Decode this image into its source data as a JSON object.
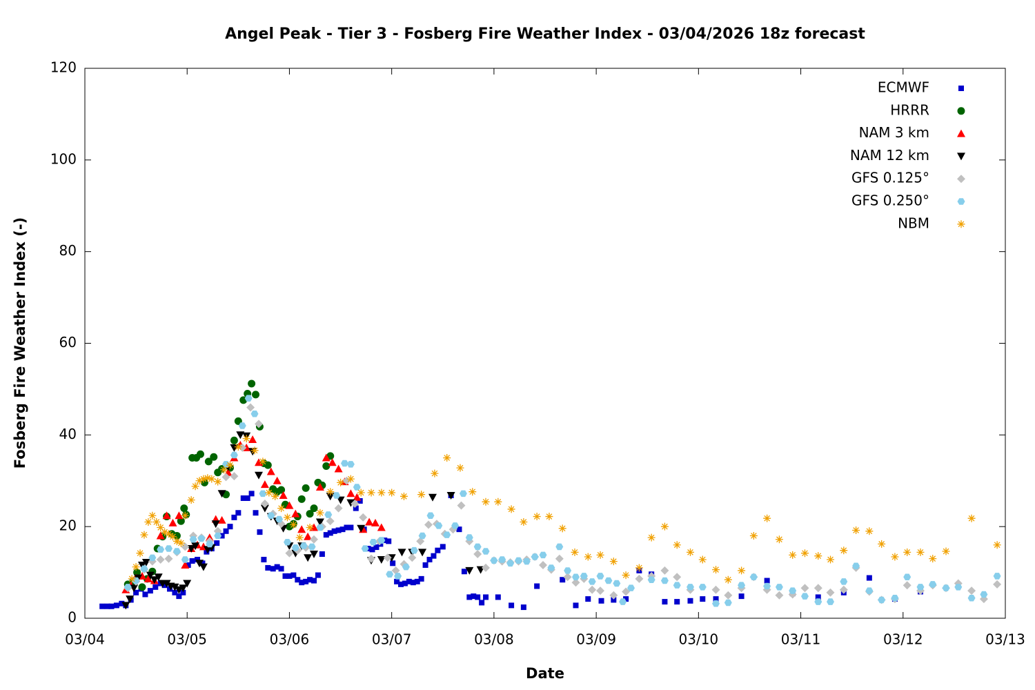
{
  "chart_data": {
    "type": "scatter",
    "title": "Angel Peak - Tier 3 - Fosberg Fire Weather Index - 03/04/2026 18z forecast",
    "x_label": "Date",
    "y_label": "Fosberg Fire Weather Index (-)",
    "xlim": [
      0,
      9
    ],
    "ylim": [
      0,
      120
    ],
    "xticks": [
      {
        "value": 0,
        "label": "03/04"
      },
      {
        "value": 1,
        "label": "03/05"
      },
      {
        "value": 2,
        "label": "03/06"
      },
      {
        "value": 3,
        "label": "03/07"
      },
      {
        "value": 4,
        "label": "03/08"
      },
      {
        "value": 5,
        "label": "03/09"
      },
      {
        "value": 6,
        "label": "03/10"
      },
      {
        "value": 7,
        "label": "03/11"
      },
      {
        "value": 8,
        "label": "03/12"
      },
      {
        "value": 9,
        "label": "03/13"
      }
    ],
    "yticks": [
      0,
      20,
      40,
      60,
      80,
      100,
      120
    ],
    "grid": false,
    "legend": "top-right",
    "series": [
      {
        "name": "ECMWF",
        "color": "#0000cc",
        "marker": "square",
        "x": [
          0.17,
          0.22,
          0.26,
          0.31,
          0.36,
          0.4,
          0.45,
          0.5,
          0.55,
          0.59,
          0.64,
          0.69,
          0.74,
          0.78,
          0.83,
          0.88,
          0.92,
          0.96,
          1.01,
          1.05,
          1.1,
          1.15,
          1.19,
          1.24,
          1.29,
          1.34,
          1.38,
          1.42,
          1.46,
          1.5,
          1.55,
          1.59,
          1.63,
          1.67,
          1.71,
          1.75,
          1.79,
          1.84,
          1.88,
          1.92,
          1.96,
          2,
          2.04,
          2.08,
          2.12,
          2.16,
          2.2,
          2.24,
          2.28,
          2.32,
          2.36,
          2.4,
          2.44,
          2.48,
          2.52,
          2.56,
          2.6,
          2.65,
          2.69,
          2.73,
          2.77,
          2.81,
          2.85,
          2.89,
          2.93,
          2.97,
          3.01,
          3.05,
          3.09,
          3.13,
          3.17,
          3.21,
          3.25,
          3.29,
          3.33,
          3.37,
          3.41,
          3.45,
          3.5,
          3.58,
          3.66,
          3.71,
          3.76,
          3.8,
          3.84,
          3.88,
          3.92,
          4.04,
          4.17,
          4.29,
          4.42,
          4.67,
          4.8,
          4.92,
          5.05,
          5.17,
          5.29,
          5.42,
          5.54,
          5.67,
          5.79,
          5.92,
          6.04,
          6.17,
          6.42,
          6.67,
          6.92,
          7.17,
          7.42,
          7.67,
          7.92,
          8.17
        ],
        "values": [
          2.6,
          2.6,
          2.6,
          2.8,
          3.2,
          2.8,
          4,
          5.6,
          6.4,
          5.2,
          6,
          6.8,
          7.6,
          7.2,
          6.4,
          5.6,
          4.8,
          5.6,
          11.6,
          12.5,
          12.8,
          12,
          14.5,
          15.2,
          16.4,
          18,
          19,
          20,
          22,
          23,
          26.2,
          26.2,
          27.2,
          23,
          18.8,
          12.8,
          11,
          10.8,
          11.2,
          10.8,
          9.2,
          9.2,
          9.4,
          8.4,
          7.8,
          8,
          8.4,
          8.2,
          9.4,
          14,
          18.2,
          18.6,
          19,
          19.2,
          19.4,
          19.8,
          19.8,
          24,
          25.6,
          19.4,
          15.2,
          15,
          15.5,
          16.2,
          17,
          16.8,
          12,
          8,
          7.4,
          7.6,
          8,
          7.8,
          8,
          8.6,
          11.6,
          12.8,
          13.6,
          14.8,
          15.6,
          26.8,
          19.4,
          10.2,
          4.6,
          4.8,
          4.6,
          3.4,
          4.6,
          4.6,
          2.8,
          2.4,
          7,
          8.4,
          2.8,
          4.2,
          3.8,
          4,
          4.2,
          10.4,
          9.6,
          3.6,
          3.6,
          3.8,
          4.2,
          4.2,
          4.8,
          8.2,
          5.4,
          4.6,
          5.6,
          8.8,
          4.2,
          5.8
        ]
      },
      {
        "name": "HRRR",
        "color": "#006400",
        "marker": "circle",
        "x": [
          0.42,
          0.47,
          0.51,
          0.56,
          0.61,
          0.66,
          0.71,
          0.76,
          0.8,
          0.85,
          0.9,
          0.94,
          0.97,
          0.99,
          1.05,
          1.09,
          1.13,
          1.17,
          1.21,
          1.26,
          1.3,
          1.34,
          1.38,
          1.42,
          1.46,
          1.5,
          1.55,
          1.59,
          1.63,
          1.67,
          1.71,
          1.75,
          1.79,
          1.84,
          1.88,
          1.92,
          1.96,
          2,
          2.04,
          2.08,
          2.12,
          2.16,
          2.2,
          2.24,
          2.28,
          2.32,
          2.36,
          2.4
        ],
        "values": [
          7.4,
          8,
          10,
          6.8,
          8.6,
          10.2,
          15.2,
          17.8,
          22.2,
          18.4,
          18,
          21.2,
          24,
          22.6,
          35,
          35,
          35.8,
          29.6,
          34.2,
          35.2,
          31.8,
          32.6,
          27,
          32.8,
          38.8,
          43,
          47.6,
          49,
          51.2,
          48.8,
          41.8,
          33.8,
          33.4,
          28.2,
          27.6,
          28,
          24.8,
          20,
          20.6,
          22.2,
          26,
          28.4,
          22.8,
          24,
          29.6,
          29,
          33.2,
          35.4
        ]
      },
      {
        "name": "NAM 3 km",
        "color": "#ff0000",
        "marker": "triangle",
        "x": [
          0.4,
          0.45,
          0.5,
          0.56,
          0.62,
          0.68,
          0.74,
          0.8,
          0.86,
          0.92,
          0.98,
          1.04,
          1.1,
          1.16,
          1.22,
          1.28,
          1.34,
          1.4,
          1.46,
          1.52,
          1.58,
          1.64,
          1.7,
          1.76,
          1.82,
          1.88,
          1.94,
          2,
          2.06,
          2.12,
          2.18,
          2.24,
          2.3,
          2.36,
          2.42,
          2.48,
          2.54,
          2.6,
          2.66,
          2.72,
          2.78,
          2.84,
          2.9
        ],
        "values": [
          6.2,
          7.2,
          8.8,
          9.2,
          8.6,
          8.2,
          18,
          22.4,
          20.8,
          22.4,
          11.6,
          15.2,
          16,
          15.6,
          17.6,
          21.6,
          21.4,
          31.8,
          35,
          37.8,
          37.2,
          39,
          34,
          29.2,
          32,
          30,
          26.8,
          24.6,
          22.8,
          19.4,
          17.8,
          19.8,
          28.6,
          35,
          34,
          32.6,
          29.8,
          27.2,
          26.4,
          19.4,
          21,
          20.8,
          19.8
        ]
      },
      {
        "name": "NAM 12 km",
        "color": "#000000",
        "marker": "triangle-down",
        "x": [
          0.4,
          0.44,
          0.48,
          0.52,
          0.56,
          0.6,
          0.64,
          0.68,
          0.72,
          0.76,
          0.8,
          0.84,
          0.88,
          0.92,
          0.96,
          1,
          1.04,
          1.08,
          1.12,
          1.16,
          1.2,
          1.24,
          1.28,
          1.34,
          1.4,
          1.46,
          1.52,
          1.58,
          1.64,
          1.7,
          1.76,
          1.82,
          1.88,
          1.94,
          2,
          2.06,
          2.12,
          2.18,
          2.24,
          2.3,
          2.4,
          2.5,
          2.6,
          2.7,
          2.8,
          2.9,
          3,
          3.1,
          3.2,
          3.3,
          3.4,
          3.58,
          3.76,
          3.87
        ],
        "values": [
          2.8,
          4.2,
          6.6,
          8.8,
          11.6,
          12.2,
          9.4,
          8.4,
          9,
          7.6,
          7.6,
          7,
          6.8,
          6.2,
          6.6,
          7.6,
          15.2,
          15.8,
          12,
          11.2,
          15,
          15.4,
          20.6,
          27.2,
          33,
          37.2,
          40,
          39.8,
          36.4,
          31.2,
          24,
          22.2,
          21.2,
          19.6,
          15.8,
          14.2,
          15.8,
          13.2,
          14,
          21,
          26.6,
          25.8,
          25.2,
          19.6,
          12.6,
          12.8,
          13.2,
          14.4,
          14.4,
          14.4,
          26.4,
          26.8,
          10.4,
          10.6
        ]
      },
      {
        "name": "GFS 0.125°",
        "color": "#c0c0c0",
        "marker": "diamond",
        "x": [
          0.42,
          0.5,
          0.58,
          0.66,
          0.74,
          0.82,
          0.9,
          0.98,
          1.06,
          1.14,
          1.22,
          1.3,
          1.38,
          1.46,
          1.54,
          1.62,
          1.7,
          1.76,
          1.84,
          1.92,
          2,
          2.08,
          2.16,
          2.24,
          2.32,
          2.4,
          2.48,
          2.56,
          2.64,
          2.72,
          2.8,
          2.88,
          2.96,
          3.04,
          3.12,
          3.2,
          3.28,
          3.36,
          3.44,
          3.52,
          3.6,
          3.68,
          3.76,
          3.84,
          3.92,
          4,
          4.08,
          4.16,
          4.24,
          4.32,
          4.4,
          4.48,
          4.56,
          4.64,
          4.72,
          4.8,
          4.88,
          4.96,
          5.04,
          5.17,
          5.29,
          5.42,
          5.54,
          5.67,
          5.79,
          5.92,
          6.17,
          6.29,
          6.42,
          6.54,
          6.67,
          6.79,
          6.92,
          7.04,
          7.17,
          7.29,
          7.42,
          7.54,
          7.67,
          7.79,
          7.92,
          8.04,
          8.17,
          8.29,
          8.42,
          8.54,
          8.67,
          8.79,
          8.92
        ],
        "values": [
          6.6,
          8,
          10.6,
          12.4,
          12.8,
          13,
          14.4,
          15.6,
          18,
          17.6,
          16.8,
          19,
          30.8,
          31,
          37.2,
          46,
          42.4,
          25,
          22.8,
          20.6,
          14.2,
          14.8,
          15.4,
          17.2,
          20,
          21.2,
          24,
          30,
          25,
          22,
          13,
          16.8,
          13.2,
          10.4,
          11.8,
          13.2,
          16.8,
          20.4,
          20.6,
          18.4,
          19.4,
          24.6,
          16.8,
          14,
          11,
          12.6,
          12.4,
          12.2,
          12.4,
          12.8,
          13.4,
          11.6,
          10.6,
          13,
          9,
          7.8,
          8.6,
          6.2,
          6,
          5,
          5.8,
          8.6,
          9.2,
          10.4,
          9,
          6.2,
          6.2,
          5,
          6.6,
          9,
          6.2,
          5,
          5.2,
          6.6,
          6.6,
          5.6,
          6.2,
          11,
          5.8,
          4,
          4.2,
          7.2,
          6,
          7.2,
          6.6,
          7.6,
          6,
          4.2,
          7.4
        ]
      },
      {
        "name": "GFS 0.250°",
        "color": "#87ceeb",
        "marker": "hexagon",
        "x": [
          0.42,
          0.5,
          0.58,
          0.66,
          0.74,
          0.82,
          0.9,
          0.98,
          1.06,
          1.14,
          1.22,
          1.3,
          1.38,
          1.46,
          1.54,
          1.6,
          1.66,
          1.74,
          1.82,
          1.9,
          1.98,
          2.06,
          2.14,
          2.22,
          2.3,
          2.38,
          2.46,
          2.54,
          2.6,
          2.66,
          2.74,
          2.82,
          2.9,
          2.98,
          3.06,
          3.14,
          3.22,
          3.3,
          3.38,
          3.46,
          3.54,
          3.62,
          3.7,
          3.76,
          3.84,
          3.92,
          4,
          4.08,
          4.16,
          4.24,
          4.32,
          4.4,
          4.48,
          4.56,
          4.64,
          4.72,
          4.8,
          4.88,
          4.96,
          5.04,
          5.12,
          5.2,
          5.26,
          5.34,
          5.54,
          5.67,
          5.79,
          5.92,
          6.04,
          6.17,
          6.29,
          6.42,
          6.54,
          6.67,
          6.79,
          6.92,
          7.04,
          7.17,
          7.29,
          7.42,
          7.54,
          7.67,
          7.79,
          7.92,
          8.04,
          8.17,
          8.29,
          8.42,
          8.54,
          8.67,
          8.79,
          8.92
        ],
        "values": [
          6.8,
          8.2,
          10.8,
          13.2,
          15,
          15.2,
          14.6,
          12.8,
          17.2,
          17.4,
          16.2,
          18,
          33.6,
          35.6,
          42,
          48,
          44.6,
          27.2,
          22.4,
          21.6,
          16.6,
          15.4,
          15.8,
          15.6,
          19.8,
          22.6,
          26.8,
          33.8,
          33.6,
          28.6,
          15.2,
          16.6,
          17,
          9.6,
          9.2,
          11.2,
          14.8,
          18,
          22.4,
          20.2,
          18.2,
          20.2,
          27.2,
          17.6,
          15.6,
          14.6,
          12.6,
          12.8,
          12,
          12.6,
          12.4,
          13.4,
          13.8,
          11,
          15.6,
          10.4,
          9,
          9.2,
          8,
          9.2,
          8.2,
          7.6,
          3.6,
          6.6,
          8.4,
          8.2,
          7.2,
          6.8,
          6.8,
          3.2,
          3.4,
          7.2,
          9,
          7,
          6.8,
          6,
          4.8,
          3.6,
          3.6,
          8,
          11.4,
          6,
          4,
          4.4,
          9,
          6.8,
          7.4,
          6.6,
          6.8,
          4.4,
          5.2,
          9.2
        ]
      },
      {
        "name": "NBM",
        "color": "#f0a000",
        "marker": "star",
        "x": [
          0.46,
          0.5,
          0.54,
          0.58,
          0.62,
          0.66,
          0.7,
          0.74,
          0.78,
          0.82,
          0.86,
          0.9,
          0.94,
          0.98,
          1.04,
          1.08,
          1.12,
          1.16,
          1.2,
          1.24,
          1.3,
          1.36,
          1.42,
          1.5,
          1.58,
          1.66,
          1.74,
          1.8,
          1.86,
          1.92,
          1.98,
          2.04,
          2.1,
          2.2,
          2.3,
          2.4,
          2.5,
          2.6,
          2.7,
          2.8,
          2.9,
          3,
          3.12,
          3.29,
          3.42,
          3.54,
          3.67,
          3.79,
          3.92,
          4.04,
          4.17,
          4.29,
          4.42,
          4.54,
          4.67,
          4.79,
          4.92,
          5.04,
          5.17,
          5.29,
          5.42,
          5.54,
          5.67,
          5.79,
          5.92,
          6.04,
          6.17,
          6.29,
          6.42,
          6.54,
          6.67,
          6.79,
          6.92,
          7.04,
          7.17,
          7.29,
          7.42,
          7.54,
          7.67,
          7.79,
          7.92,
          8.04,
          8.17,
          8.29,
          8.42,
          8.67,
          8.92
        ],
        "values": [
          8.6,
          11.2,
          14.2,
          18.2,
          21,
          22.4,
          21,
          19.8,
          18.8,
          18.4,
          17.8,
          16.8,
          16.4,
          22.4,
          25.8,
          28.8,
          30,
          30.4,
          30.6,
          30.4,
          29.8,
          32.4,
          33.4,
          37.4,
          39.2,
          36.6,
          34.2,
          27.4,
          26.6,
          24,
          22,
          20.4,
          17.6,
          19.8,
          23,
          27.6,
          29.6,
          30.4,
          27.4,
          27.4,
          27.4,
          27.4,
          26.6,
          27,
          31.6,
          35,
          32.8,
          27.6,
          25.4,
          25.4,
          23.8,
          21,
          22.2,
          22.2,
          19.6,
          14.4,
          13.4,
          13.8,
          12.4,
          9.4,
          11,
          17.6,
          20,
          16,
          14.4,
          12.8,
          10.6,
          8.4,
          10.4,
          18,
          21.8,
          17.2,
          13.8,
          14.2,
          13.6,
          12.8,
          14.8,
          19.2,
          19,
          16.2,
          13.4,
          14.4,
          14.4,
          13,
          14.6,
          21.8,
          16
        ]
      }
    ]
  }
}
